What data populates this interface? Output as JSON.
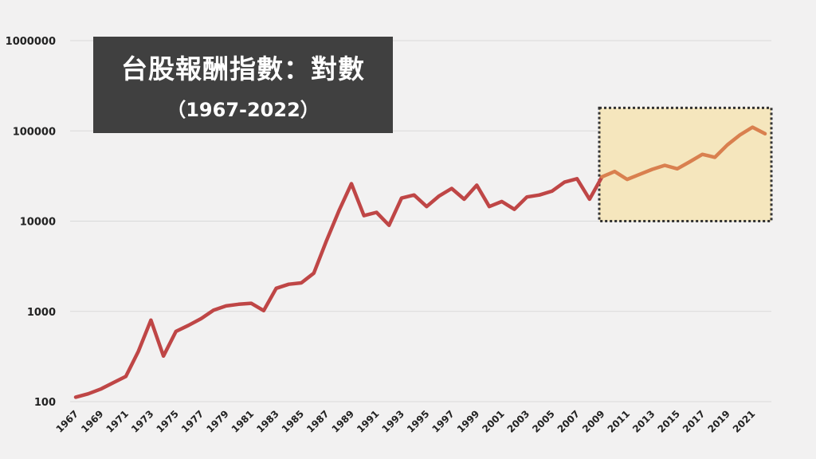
{
  "title": {
    "main": "台股報酬指數：對數",
    "sub": "（1967-2022）"
  },
  "colors": {
    "background": "#f2f1f1",
    "gridline": "#d9d9d9",
    "line_main": "#bf4646",
    "line_highlight": "#d9804f",
    "highlight_fill": "#f5e6bd",
    "highlight_border": "#333333",
    "title_box": "#404040"
  },
  "chart_data": {
    "type": "line",
    "title": "台股報酬指數：對數",
    "subtitle": "（1967-2022）",
    "xlabel": "",
    "ylabel": "",
    "y_scale": "log",
    "ylim": [
      100,
      1000000
    ],
    "xlim": [
      1967,
      2022
    ],
    "grid": "horizontal",
    "y_ticks": [
      100,
      1000,
      10000,
      100000,
      1000000
    ],
    "y_tick_labels": [
      "100",
      "1000",
      "10000",
      "100000",
      "1000000"
    ],
    "x_tick_labels": [
      "1967",
      "1969",
      "1971",
      "1973",
      "1975",
      "1977",
      "1979",
      "1981",
      "1983",
      "1985",
      "1987",
      "1989",
      "1991",
      "1993",
      "1995",
      "1997",
      "1999",
      "2001",
      "2003",
      "2005",
      "2007",
      "2009",
      "2011",
      "2013",
      "2015",
      "2017",
      "2019",
      "2021"
    ],
    "highlight": {
      "x_range": [
        2009,
        2022
      ],
      "y_range": [
        10000,
        180000
      ]
    },
    "series": [
      {
        "x": [
          1967,
          1968,
          1969,
          1970,
          1971,
          1972,
          1973,
          1974,
          1975,
          1976,
          1977,
          1978,
          1979,
          1980,
          1981,
          1982,
          1983,
          1984,
          1985,
          1986,
          1987,
          1988,
          1989,
          1990,
          1991,
          1992,
          1993,
          1994,
          1995,
          1996,
          1997,
          1998,
          1999,
          2000,
          2001,
          2002,
          2003,
          2004,
          2005,
          2006,
          2007,
          2008,
          2009,
          2010,
          2011,
          2012,
          2013,
          2014,
          2015,
          2016,
          2017,
          2018,
          2019,
          2020,
          2021,
          2022
        ],
        "values": [
          112,
          122,
          138,
          162,
          190,
          360,
          800,
          320,
          600,
          700,
          830,
          1030,
          1150,
          1200,
          1230,
          1020,
          1800,
          2000,
          2070,
          2650,
          6000,
          13000,
          26000,
          11500,
          12500,
          9000,
          18000,
          19500,
          14500,
          19000,
          23000,
          17500,
          25000,
          14500,
          16500,
          13500,
          18500,
          19500,
          21500,
          27000,
          29500,
          17500,
          31000,
          35500,
          29000,
          33000,
          37500,
          41500,
          38000,
          45500,
          55000,
          51000,
          70000,
          90000,
          110000,
          93000
        ]
      }
    ]
  }
}
